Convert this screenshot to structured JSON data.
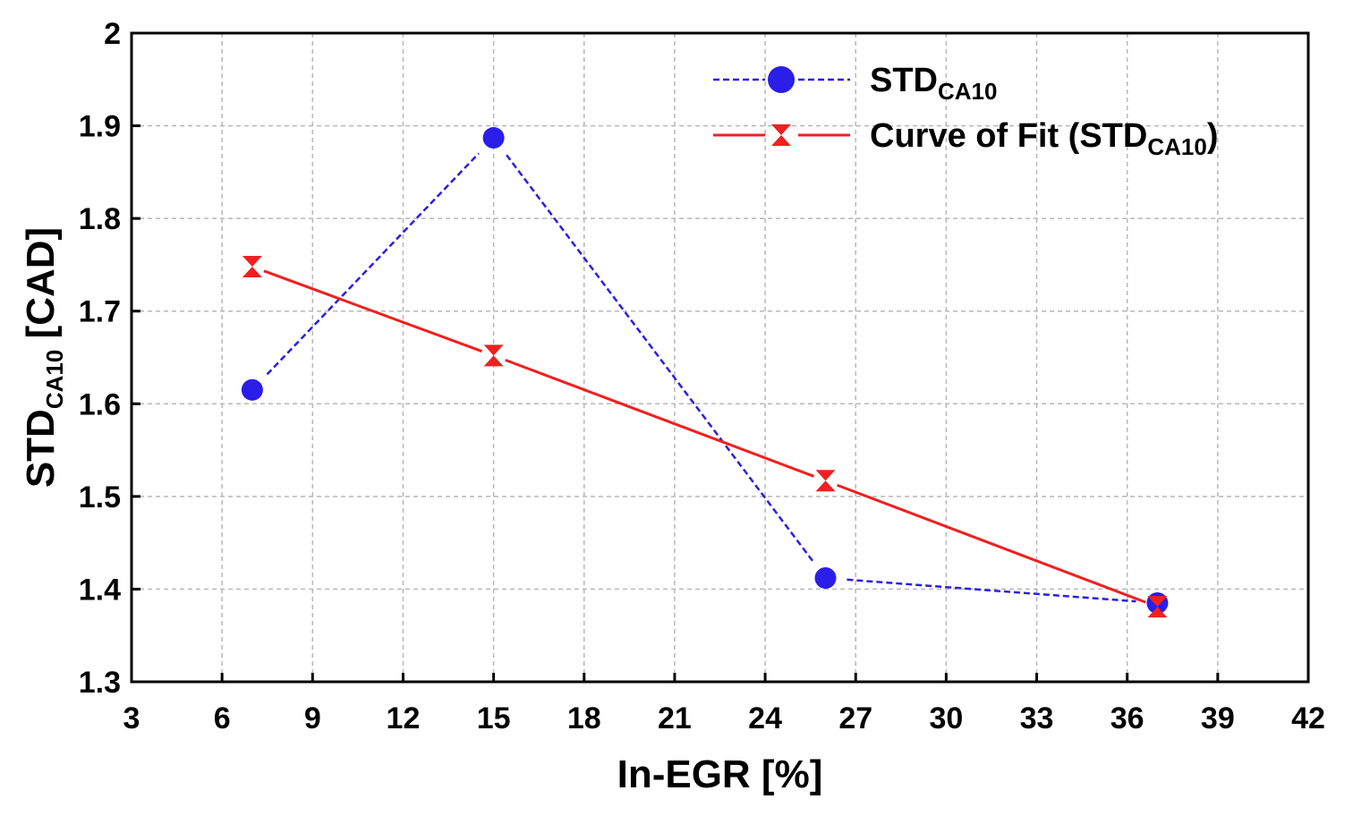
{
  "chart_data": {
    "type": "line",
    "title": "",
    "xlabel": "In-EGR [%]",
    "ylabel": {
      "main": "STD",
      "sub": "CA10",
      "suffix": " [CAD]"
    },
    "xlim": [
      3,
      42
    ],
    "ylim": [
      1.3,
      2.0
    ],
    "xticks": [
      3,
      6,
      9,
      12,
      15,
      18,
      21,
      24,
      27,
      30,
      33,
      36,
      39,
      42
    ],
    "yticks": [
      "1.3",
      "1.4",
      "1.5",
      "1.6",
      "1.7",
      "1.8",
      "1.9",
      "2"
    ],
    "grid": true,
    "legend_position": "top-right",
    "series": [
      {
        "name": {
          "main": "STD",
          "sub": "CA10",
          "suffix": ""
        },
        "color": "#2a1ee8",
        "line_style": "dashed",
        "marker": "circle",
        "x": [
          7,
          15,
          26,
          37
        ],
        "y": [
          1.615,
          1.887,
          1.412,
          1.385
        ]
      },
      {
        "name": {
          "main": "Curve of Fit (STD",
          "sub": "CA10",
          "suffix": ")"
        },
        "color": "#f02020",
        "line_style": "solid",
        "marker": "hourglass",
        "x": [
          7,
          15,
          26,
          37
        ],
        "y": [
          1.748,
          1.652,
          1.517,
          1.381
        ]
      }
    ]
  }
}
